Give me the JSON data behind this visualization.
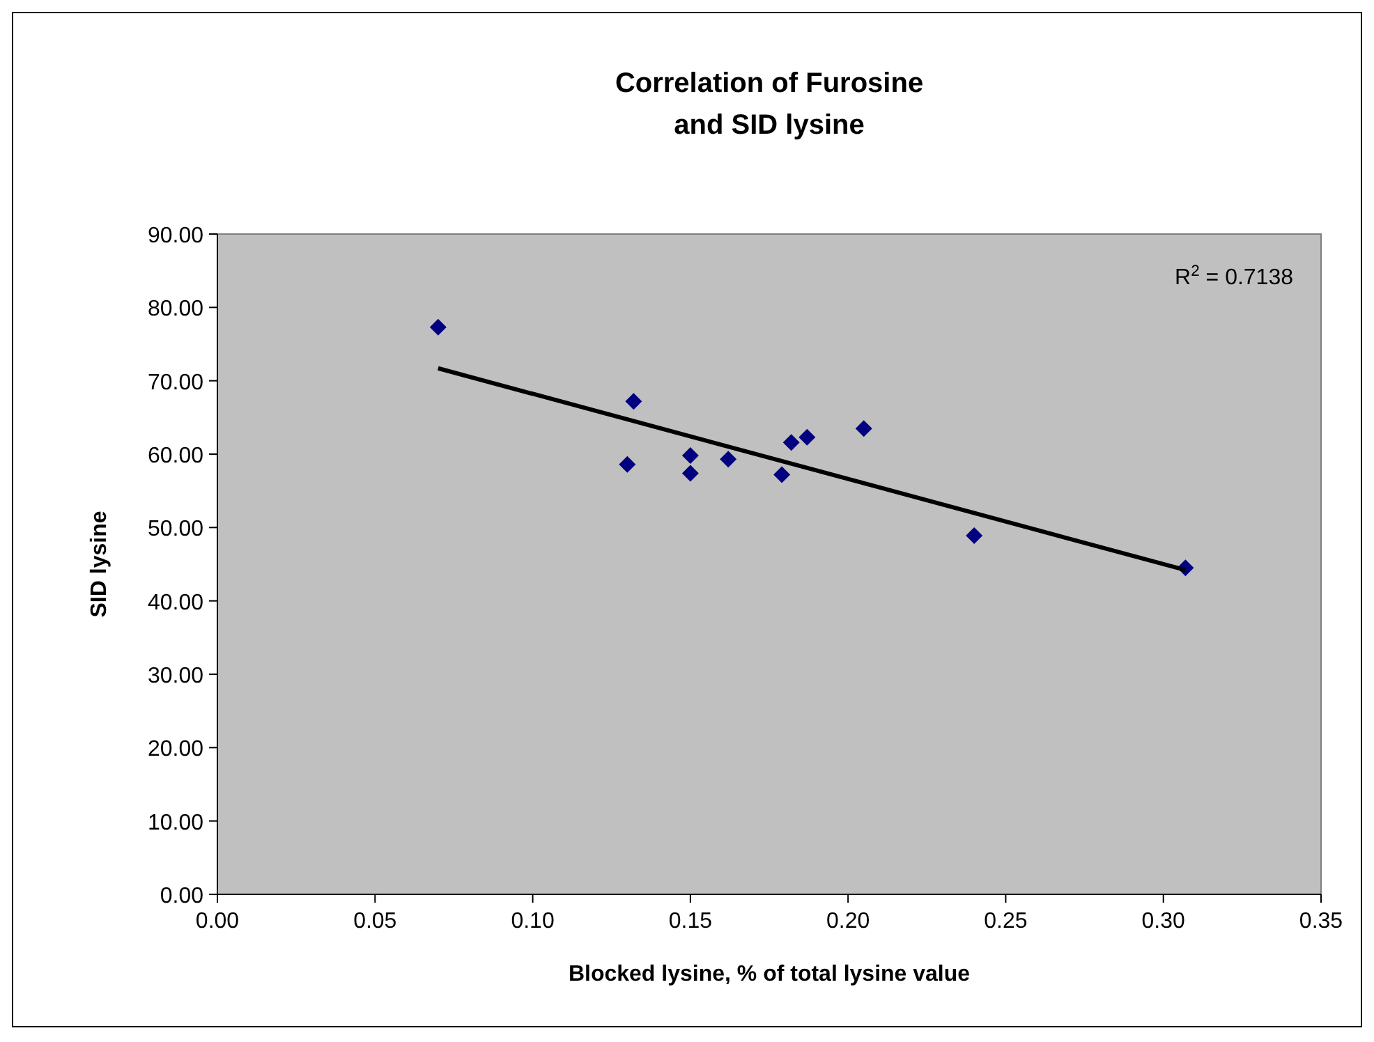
{
  "chart_data": {
    "type": "scatter",
    "title": "Correlation of Furosine\nand SID lysine",
    "xlabel": "Blocked lysine, % of total lysine value",
    "ylabel": "SID lysine",
    "xlim": [
      0,
      0.35
    ],
    "xticks": [
      {
        "value": 0,
        "label": "0.00"
      },
      {
        "value": 0.05,
        "label": "0.05"
      },
      {
        "value": 0.1,
        "label": "0.10"
      },
      {
        "value": 0.15,
        "label": "0.15"
      },
      {
        "value": 0.2,
        "label": "0.20"
      },
      {
        "value": 0.25,
        "label": "0.25"
      },
      {
        "value": 0.3,
        "label": "0.30"
      },
      {
        "value": 0.35,
        "label": "0.35"
      }
    ],
    "ylim": [
      0,
      90
    ],
    "yticks": [
      {
        "value": 0,
        "label": "0.00"
      },
      {
        "value": 10,
        "label": "10.00"
      },
      {
        "value": 20,
        "label": "20.00"
      },
      {
        "value": 30,
        "label": "30.00"
      },
      {
        "value": 40,
        "label": "40.00"
      },
      {
        "value": 50,
        "label": "50.00"
      },
      {
        "value": 60,
        "label": "60.00"
      },
      {
        "value": 70,
        "label": "70.00"
      },
      {
        "value": 80,
        "label": "80.00"
      },
      {
        "value": 90,
        "label": "90.00"
      }
    ],
    "marker": "diamond",
    "grid": false,
    "annotations": [
      "R$^{2}$ = 0.7138"
    ],
    "series": [
      {
        "color": "#000080",
        "x": [
          0.07,
          0.132,
          0.13,
          0.15,
          0.15,
          0.162,
          0.179,
          0.182,
          0.187,
          0.205,
          0.24,
          0.307
        ],
        "values": [
          77.3,
          67.2,
          58.6,
          59.8,
          57.4,
          59.3,
          57.2,
          61.6,
          62.3,
          63.5,
          48.9,
          44.5
        ]
      },
      {
        "type": "line",
        "color": "#000000",
        "marker": "none",
        "x": [
          0.07,
          0.307
        ],
        "values": [
          71.7,
          44.2
        ]
      }
    ]
  }
}
